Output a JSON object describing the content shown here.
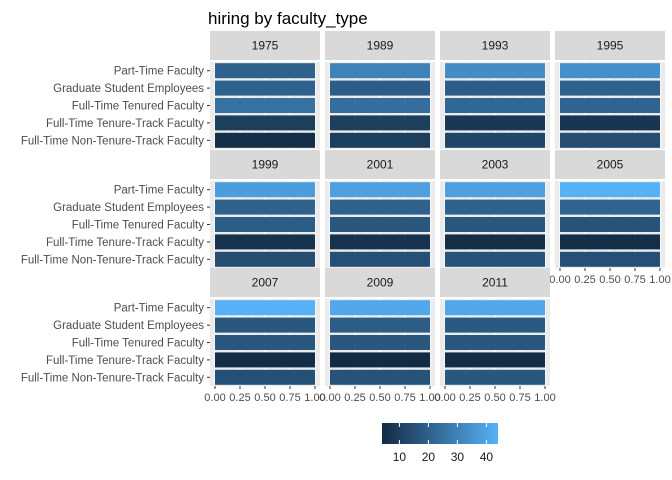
{
  "chart_data": {
    "type": "heatmap",
    "title": "hiring by faculty_type",
    "categories": [
      "Full-Time Non-Tenure-Track Faculty",
      "Full-Time Tenure-Track Faculty",
      "Full-Time Tenured Faculty",
      "Graduate Student Employees",
      "Part-Time Faculty"
    ],
    "panels": [
      {
        "year": "1975",
        "values": [
          5,
          10,
          25,
          20,
          20
        ]
      },
      {
        "year": "1989",
        "values": [
          10,
          10,
          24,
          19,
          30
        ]
      },
      {
        "year": "1993",
        "values": [
          12,
          8,
          22,
          19,
          33
        ]
      },
      {
        "year": "1995",
        "values": [
          14,
          7,
          21,
          20,
          34
        ]
      },
      {
        "year": "1999",
        "values": [
          14,
          6,
          19,
          20,
          38
        ]
      },
      {
        "year": "2001",
        "values": [
          15,
          6,
          17,
          20,
          39
        ]
      },
      {
        "year": "2003",
        "values": [
          16,
          5,
          17,
          20,
          39
        ]
      },
      {
        "year": "2005",
        "values": [
          15,
          5,
          16,
          21,
          44
        ]
      },
      {
        "year": "2007",
        "values": [
          15,
          5,
          17,
          17,
          44
        ]
      },
      {
        "year": "2009",
        "values": [
          16,
          4,
          17,
          19,
          41
        ]
      },
      {
        "year": "2011",
        "values": [
          17,
          5,
          17,
          18,
          41
        ]
      }
    ],
    "xlim": [
      0,
      1
    ],
    "x_ticks": [
      "0.00",
      "0.25",
      "0.50",
      "0.75",
      "1.00"
    ],
    "legend": {
      "position": "bottom",
      "ticks": [
        10,
        20,
        30,
        40
      ],
      "range": [
        4,
        44
      ],
      "low_color": "#132b43",
      "high_color": "#56b1f7"
    },
    "panel_bg": "#ebebeb",
    "strip_bg": "#d9d9d9",
    "grid": true
  }
}
